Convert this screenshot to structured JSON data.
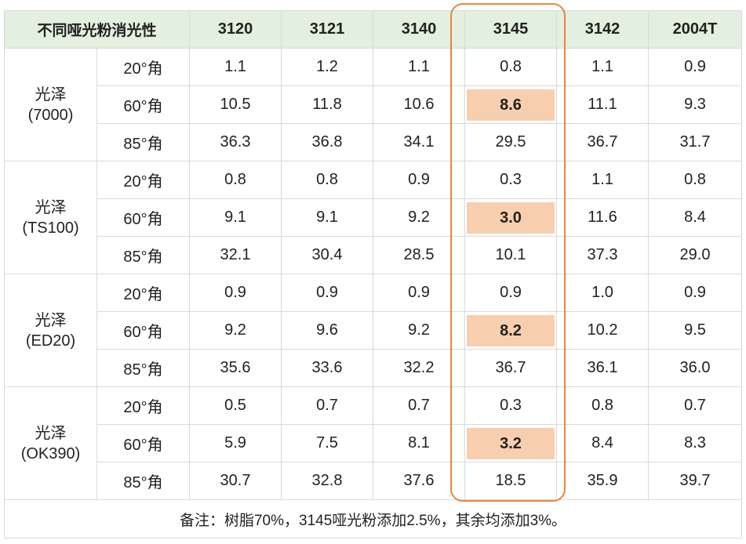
{
  "header": {
    "corner": "不同哑光粉消光性",
    "columns": [
      "3120",
      "3121",
      "3140",
      "3145",
      "3142",
      "2004T"
    ]
  },
  "highlight_column": "3145",
  "groups": [
    {
      "label": "光泽\n(7000)",
      "rows": [
        {
          "angle": "20°角",
          "values": [
            "1.1",
            "1.2",
            "1.1",
            "0.8",
            "1.1",
            "0.9"
          ]
        },
        {
          "angle": "60°角",
          "values": [
            "10.5",
            "11.8",
            "10.6",
            "8.6",
            "11.1",
            "9.3"
          ]
        },
        {
          "angle": "85°角",
          "values": [
            "36.3",
            "36.8",
            "34.1",
            "29.5",
            "36.7",
            "31.7"
          ]
        }
      ]
    },
    {
      "label": "光泽\n(TS100)",
      "rows": [
        {
          "angle": "20°角",
          "values": [
            "0.8",
            "0.8",
            "0.9",
            "0.3",
            "1.1",
            "0.8"
          ]
        },
        {
          "angle": "60°角",
          "values": [
            "9.1",
            "9.1",
            "9.2",
            "3.0",
            "11.6",
            "8.4"
          ]
        },
        {
          "angle": "85°角",
          "values": [
            "32.1",
            "30.4",
            "28.5",
            "10.1",
            "37.3",
            "29.0"
          ]
        }
      ]
    },
    {
      "label": "光泽\n(ED20)",
      "rows": [
        {
          "angle": "20°角",
          "values": [
            "0.9",
            "0.9",
            "0.9",
            "0.9",
            "1.0",
            "0.9"
          ]
        },
        {
          "angle": "60°角",
          "values": [
            "9.2",
            "9.6",
            "9.2",
            "8.2",
            "10.2",
            "9.5"
          ]
        },
        {
          "angle": "85°角",
          "values": [
            "35.6",
            "33.6",
            "32.2",
            "36.7",
            "36.1",
            "36.0"
          ]
        }
      ]
    },
    {
      "label": "光泽\n(OK390)",
      "rows": [
        {
          "angle": "20°角",
          "values": [
            "0.5",
            "0.7",
            "0.7",
            "0.3",
            "0.8",
            "0.7"
          ]
        },
        {
          "angle": "60°角",
          "values": [
            "5.9",
            "7.5",
            "8.1",
            "3.2",
            "8.4",
            "8.3"
          ]
        },
        {
          "angle": "85°角",
          "values": [
            "30.7",
            "32.8",
            "37.6",
            "18.5",
            "35.9",
            "39.7"
          ]
        }
      ]
    }
  ],
  "note": "备注：树脂70%，3145哑光粉添加2.5%，其余均添加3%。",
  "colors": {
    "header_bg": "#e3efdf",
    "highlight_cell": "#f8cfae",
    "frame": "#e8873f"
  }
}
